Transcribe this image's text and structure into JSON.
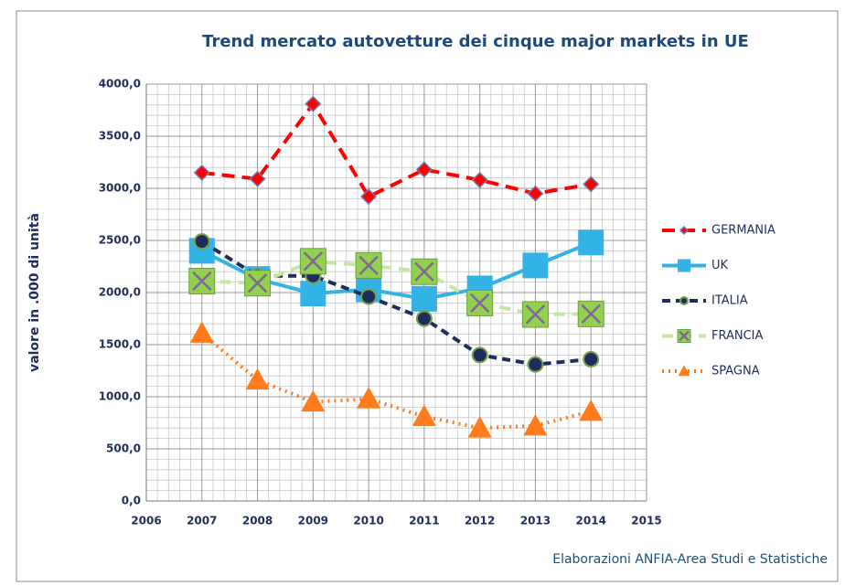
{
  "chart_data": {
    "type": "line",
    "title": "Trend mercato autovetture dei cinque major markets in UE",
    "y_label": "valore in .000 di unità",
    "note": "Elaborazioni ANFIA-Area Studi e Statistiche",
    "x": [
      2007,
      2008,
      2009,
      2010,
      2011,
      2012,
      2013,
      2014
    ],
    "xlim": [
      2006,
      2015
    ],
    "xticks": [
      2006,
      2007,
      2008,
      2009,
      2010,
      2011,
      2012,
      2013,
      2014,
      2015
    ],
    "ylim": [
      0,
      4000
    ],
    "yticks": [
      {
        "value": 0,
        "label": "0,0"
      },
      {
        "value": 500,
        "label": "500,0"
      },
      {
        "value": 1000,
        "label": "1000,0"
      },
      {
        "value": 1500,
        "label": "1500,0"
      },
      {
        "value": 2000,
        "label": "2000,0"
      },
      {
        "value": 2500,
        "label": "2500,0"
      },
      {
        "value": 3000,
        "label": "3000,0"
      },
      {
        "value": 3500,
        "label": "3500,0"
      },
      {
        "value": 4000,
        "label": "4000,0"
      }
    ],
    "grid": true,
    "legend": "right",
    "series": [
      {
        "name": "GERMANIA",
        "color": "#ff0000",
        "values": [
          3150,
          3090,
          3810,
          2920,
          3180,
          3080,
          2950,
          3040
        ]
      },
      {
        "name": "UK",
        "color": "#33b2e6",
        "values": [
          2400,
          2130,
          1990,
          2030,
          1940,
          2040,
          2260,
          2480
        ]
      },
      {
        "name": "ITALIA",
        "color": "#1f2d5c",
        "values": [
          2490,
          2160,
          2160,
          1960,
          1750,
          1400,
          1310,
          1360
        ]
      },
      {
        "name": "FRANCIA",
        "color": "#92d050",
        "values": [
          2110,
          2090,
          2300,
          2260,
          2200,
          1900,
          1790,
          1795
        ]
      },
      {
        "name": "SPAGNA",
        "color": "#ff7b1c",
        "values": [
          1610,
          1160,
          950,
          980,
          810,
          700,
          720,
          860
        ]
      }
    ]
  }
}
